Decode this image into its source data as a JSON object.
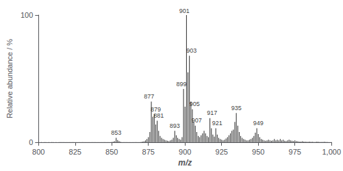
{
  "chart_data": {
    "type": "bar",
    "xlabel": "m/z",
    "ylabel": "Relative abundance / %",
    "color": "#2a2a2a",
    "grid": false,
    "xlim": [
      800,
      1000
    ],
    "ylim": [
      0,
      100
    ],
    "xticks": [
      800,
      825,
      850,
      875,
      900,
      925,
      950,
      975,
      1000
    ],
    "yticks": [
      0,
      100
    ],
    "x": [
      800,
      802,
      804,
      805,
      807,
      809,
      810,
      812,
      814,
      815,
      816,
      817,
      818,
      819,
      820,
      821,
      822,
      823,
      824,
      825,
      826,
      827,
      828,
      829,
      830,
      831,
      832,
      833,
      834,
      835,
      836,
      837,
      838,
      839,
      840,
      841,
      842,
      843,
      844,
      845,
      846,
      847,
      848,
      849,
      850,
      851,
      852,
      853,
      854,
      855,
      856,
      857,
      858,
      859,
      860,
      861,
      862,
      863,
      864,
      865,
      866,
      867,
      868,
      869,
      870,
      871,
      872,
      873,
      874,
      875,
      876,
      877,
      878,
      879,
      880,
      881,
      882,
      883,
      884,
      885,
      886,
      887,
      888,
      889,
      890,
      891,
      892,
      893,
      894,
      895,
      896,
      897,
      898,
      899,
      900,
      901,
      902,
      903,
      904,
      905,
      906,
      907,
      908,
      909,
      910,
      911,
      912,
      913,
      914,
      915,
      916,
      917,
      918,
      919,
      920,
      921,
      922,
      923,
      924,
      925,
      926,
      927,
      928,
      929,
      930,
      931,
      932,
      933,
      934,
      935,
      936,
      937,
      938,
      939,
      940,
      941,
      942,
      943,
      944,
      945,
      946,
      947,
      948,
      949,
      950,
      951,
      952,
      953,
      954,
      955,
      956,
      957,
      958,
      959,
      960,
      961,
      962,
      963,
      964,
      965,
      966,
      967,
      968,
      969,
      970,
      971,
      972,
      973,
      974,
      975,
      976,
      977,
      978,
      979,
      980,
      981,
      982,
      983,
      984,
      985,
      986,
      987,
      988,
      989,
      990,
      991,
      992,
      993,
      994,
      995,
      996,
      997,
      998,
      999,
      1000
    ],
    "values": [
      0.1,
      0.1,
      0.1,
      0.1,
      0.1,
      0.1,
      0.1,
      0.1,
      0.1,
      0.2,
      0.1,
      0.1,
      0.1,
      0.1,
      0.1,
      0.1,
      0.1,
      0.1,
      0.1,
      0.2,
      0.1,
      0.1,
      0.1,
      0.1,
      0.1,
      0.1,
      0.1,
      0.1,
      0.1,
      0.2,
      0.1,
      0.1,
      0.1,
      0.1,
      0.15,
      0.1,
      0.1,
      0.1,
      0.1,
      0.2,
      0.1,
      0.1,
      0.1,
      0.2,
      0.3,
      0.5,
      0.8,
      3.5,
      1.8,
      0.9,
      0.4,
      0.2,
      0.15,
      0.1,
      0.1,
      0.1,
      0.1,
      0.15,
      0.1,
      0.1,
      0.1,
      0.1,
      0.1,
      0.2,
      0.3,
      0.5,
      0.8,
      1.5,
      2.5,
      4.0,
      8.0,
      32.0,
      20.0,
      22.0,
      14.0,
      17.0,
      9.0,
      5.0,
      3.5,
      2.5,
      2.0,
      1.5,
      1.2,
      1.0,
      1.5,
      2.0,
      3.5,
      9.0,
      5.5,
      3.5,
      2.5,
      2.0,
      4.0,
      42.0,
      28.0,
      100.0,
      55.0,
      68.0,
      32.0,
      26.0,
      16.0,
      13.0,
      8.0,
      5.0,
      4.0,
      5.5,
      7.0,
      9.0,
      7.0,
      5.0,
      4.0,
      19.0,
      11.0,
      6.0,
      4.5,
      11.0,
      6.0,
      3.5,
      2.5,
      2.0,
      1.5,
      2.0,
      3.0,
      4.0,
      5.5,
      7.0,
      9.0,
      10.0,
      16.0,
      23.0,
      13.0,
      8.0,
      5.0,
      3.5,
      2.5,
      2.0,
      1.5,
      1.5,
      2.0,
      2.5,
      3.5,
      5.0,
      7.5,
      11.0,
      6.5,
      4.0,
      2.5,
      2.0,
      1.5,
      1.2,
      1.5,
      2.0,
      1.5,
      1.2,
      1.5,
      2.5,
      1.5,
      2.0,
      1.5,
      2.5,
      1.5,
      2.0,
      1.2,
      1.0,
      1.5,
      2.0,
      1.5,
      1.2,
      1.0,
      1.5,
      1.0,
      0.8,
      0.6,
      0.5,
      0.8,
      0.6,
      0.5,
      0.4,
      0.4,
      0.5,
      0.4,
      0.4,
      0.3,
      0.3,
      0.5,
      0.4,
      0.3,
      0.3,
      0.3,
      0.4,
      0.3,
      0.3,
      0.2,
      0.2,
      0.2
    ],
    "annotations": [
      {
        "text": "853",
        "x": 853,
        "y": 4.5
      },
      {
        "text": "877",
        "x": 875.5,
        "y": 33
      },
      {
        "text": "879",
        "x": 880,
        "y": 23
      },
      {
        "text": "881",
        "x": 882,
        "y": 18
      },
      {
        "text": "893",
        "x": 893,
        "y": 10
      },
      {
        "text": "899",
        "x": 897.5,
        "y": 43
      },
      {
        "text": "901",
        "x": 899.5,
        "y": 100.5
      },
      {
        "text": "903",
        "x": 904.5,
        "y": 69
      },
      {
        "text": "905",
        "x": 906.5,
        "y": 27
      },
      {
        "text": "907",
        "x": 908,
        "y": 14
      },
      {
        "text": "917",
        "x": 918.5,
        "y": 20
      },
      {
        "text": "921",
        "x": 922,
        "y": 12
      },
      {
        "text": "935",
        "x": 935,
        "y": 24
      },
      {
        "text": "949",
        "x": 950,
        "y": 12
      }
    ]
  }
}
